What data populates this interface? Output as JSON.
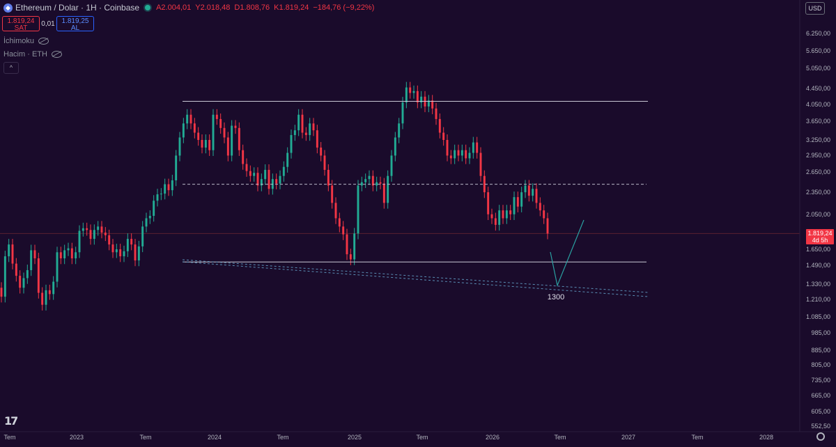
{
  "header": {
    "symbol": "Ethereum / Dolar · 1H · Coinbase",
    "symbol_icon": "ethereum-icon",
    "open": "A2.004,01",
    "high": "Y2.018,48",
    "low": "D1.808,76",
    "close": "K1.819,24",
    "change": "−184,76 (−9,22%)",
    "colors": {
      "down": "#f23645",
      "up": "#22ab94"
    }
  },
  "trade": {
    "sell_price": "1.819,24",
    "sell_label": "SAT",
    "spread": "0,01",
    "buy_price": "1.819,25",
    "buy_label": "AL"
  },
  "indicators": [
    {
      "name": "İchimoku"
    },
    {
      "name": "Hacim · ETH"
    }
  ],
  "collapse_label": "^",
  "currency": "USD",
  "last_price": {
    "value": "1.819,24",
    "countdown": "4d 5h"
  },
  "logo": "17",
  "chart_data": {
    "type": "candlestick",
    "title": "",
    "y_scale": "log",
    "ylim": [
      530,
      7300
    ],
    "y_ticks": [
      "6.250,00",
      "5.650,00",
      "5.050,00",
      "4.450,00",
      "4.050,00",
      "3.650,00",
      "3.250,00",
      "2.950,00",
      "2.650,00",
      "2.350,00",
      "2.050,00",
      "1.819,24",
      "1.650,00",
      "1.490,00",
      "1.330,00",
      "1.210,00",
      "1.085,00",
      "985,00",
      "885,00",
      "805,00",
      "735,00",
      "665,00",
      "605,00",
      "552,50"
    ],
    "x_ticks": [
      "Tem",
      "2023",
      "Tem",
      "2024",
      "Tem",
      "2025",
      "Tem",
      "2026",
      "Tem",
      "2027",
      "Tem",
      "2028"
    ],
    "candles": [
      [
        1300,
        1230
      ],
      [
        1230,
        1580
      ],
      [
        1580,
        1700
      ],
      [
        1700,
        1510
      ],
      [
        1510,
        1400
      ],
      [
        1400,
        1300
      ],
      [
        1300,
        1380
      ],
      [
        1380,
        1450
      ],
      [
        1450,
        1640
      ],
      [
        1640,
        1560
      ],
      [
        1560,
        1260
      ],
      [
        1260,
        1170
      ],
      [
        1170,
        1280
      ],
      [
        1280,
        1250
      ],
      [
        1250,
        1350
      ],
      [
        1350,
        1620
      ],
      [
        1620,
        1560
      ],
      [
        1560,
        1640
      ],
      [
        1640,
        1660
      ],
      [
        1660,
        1560
      ],
      [
        1560,
        1620
      ],
      [
        1620,
        1850
      ],
      [
        1850,
        1880
      ],
      [
        1880,
        1860
      ],
      [
        1860,
        1760
      ],
      [
        1760,
        1860
      ],
      [
        1860,
        1900
      ],
      [
        1900,
        1830
      ],
      [
        1830,
        1800
      ],
      [
        1800,
        1700
      ],
      [
        1700,
        1620
      ],
      [
        1620,
        1650
      ],
      [
        1650,
        1580
      ],
      [
        1580,
        1630
      ],
      [
        1630,
        1760
      ],
      [
        1760,
        1700
      ],
      [
        1700,
        1540
      ],
      [
        1540,
        1680
      ],
      [
        1680,
        1900
      ],
      [
        1900,
        2000
      ],
      [
        2000,
        2030
      ],
      [
        2030,
        2230
      ],
      [
        2230,
        2320
      ],
      [
        2320,
        2330
      ],
      [
        2330,
        2470
      ],
      [
        2470,
        2380
      ],
      [
        2380,
        2530
      ],
      [
        2530,
        2950
      ],
      [
        2950,
        3300
      ],
      [
        3300,
        3600
      ],
      [
        3600,
        3800
      ],
      [
        3800,
        3600
      ],
      [
        3600,
        3400
      ],
      [
        3400,
        3250
      ],
      [
        3250,
        3100
      ],
      [
        3100,
        3250
      ],
      [
        3250,
        3050
      ],
      [
        3050,
        3800
      ],
      [
        3800,
        3700
      ],
      [
        3700,
        3500
      ],
      [
        3500,
        3300
      ],
      [
        3300,
        2950
      ],
      [
        2950,
        3550
      ],
      [
        3550,
        3500
      ],
      [
        3500,
        3050
      ],
      [
        3050,
        2800
      ],
      [
        2800,
        2680
      ],
      [
        2680,
        2600
      ],
      [
        2600,
        2650
      ],
      [
        2650,
        2450
      ],
      [
        2450,
        2550
      ],
      [
        2550,
        2700
      ],
      [
        2700,
        2400
      ],
      [
        2400,
        2550
      ],
      [
        2550,
        2480
      ],
      [
        2480,
        2600
      ],
      [
        2600,
        2750
      ],
      [
        2750,
        3000
      ],
      [
        3000,
        3350
      ],
      [
        3350,
        3450
      ],
      [
        3450,
        3800
      ],
      [
        3800,
        3400
      ],
      [
        3400,
        3350
      ],
      [
        3350,
        3600
      ],
      [
        3600,
        3450
      ],
      [
        3450,
        3100
      ],
      [
        3100,
        2950
      ],
      [
        2950,
        2700
      ],
      [
        2700,
        2450
      ],
      [
        2450,
        2200
      ],
      [
        2200,
        2000
      ],
      [
        2000,
        1900
      ],
      [
        1900,
        1810
      ],
      [
        1810,
        1600
      ],
      [
        1600,
        1550
      ],
      [
        1550,
        1820
      ],
      [
        1820,
        2450
      ],
      [
        2450,
        2500
      ],
      [
        2500,
        2550
      ],
      [
        2550,
        2600
      ],
      [
        2600,
        2450
      ],
      [
        2450,
        2500
      ],
      [
        2500,
        2480
      ],
      [
        2480,
        2200
      ],
      [
        2200,
        2600
      ],
      [
        2600,
        2950
      ],
      [
        2950,
        3300
      ],
      [
        3300,
        3600
      ],
      [
        3600,
        4100
      ],
      [
        4100,
        4500
      ],
      [
        4500,
        4350
      ],
      [
        4350,
        4400
      ],
      [
        4400,
        4100
      ],
      [
        4100,
        4250
      ],
      [
        4250,
        4000
      ],
      [
        4000,
        4150
      ],
      [
        4150,
        3950
      ],
      [
        3950,
        3700
      ],
      [
        3700,
        3400
      ],
      [
        3400,
        3250
      ],
      [
        3250,
        2950
      ],
      [
        2950,
        2900
      ],
      [
        2900,
        3050
      ],
      [
        3050,
        2950
      ],
      [
        2950,
        3050
      ],
      [
        3050,
        2900
      ],
      [
        2900,
        3000
      ],
      [
        3000,
        3200
      ],
      [
        3200,
        3000
      ],
      [
        3000,
        2600
      ],
      [
        2600,
        2350
      ],
      [
        2350,
        2050
      ],
      [
        2050,
        2000
      ],
      [
        2000,
        1920
      ],
      [
        1920,
        2100
      ],
      [
        2100,
        2000
      ],
      [
        2000,
        2100
      ],
      [
        2100,
        2050
      ],
      [
        2050,
        2280
      ],
      [
        2280,
        2150
      ],
      [
        2150,
        2350
      ],
      [
        2350,
        2450
      ],
      [
        2450,
        2300
      ],
      [
        2300,
        2400
      ],
      [
        2400,
        2200
      ],
      [
        2200,
        2100
      ],
      [
        2100,
        2000
      ],
      [
        2000,
        1819.24
      ]
    ],
    "annotations": {
      "resistance": 4130,
      "mid_level": 2470,
      "support": 1525,
      "target_label": "1300",
      "target_value": 1300
    }
  }
}
